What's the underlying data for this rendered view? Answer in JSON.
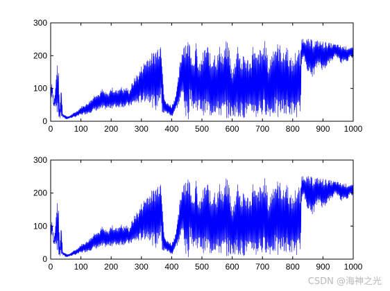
{
  "watermark": "CSDN @海神之光",
  "colors": {
    "signal": "#0000ff",
    "axes": "#000000",
    "background": "#ffffff"
  },
  "chart_data": [
    {
      "type": "line",
      "title": "",
      "xlabel": "",
      "ylabel": "",
      "xlim": [
        0,
        1000
      ],
      "ylim": [
        0,
        300
      ],
      "grid": false,
      "xticks": [
        "0",
        "100",
        "200",
        "300",
        "400",
        "500",
        "600",
        "700",
        "800",
        "900",
        "1000"
      ],
      "yticks": [
        "0",
        "100",
        "200",
        "300"
      ],
      "series": [
        {
          "color": "#0000ff",
          "x": [
            0,
            5,
            10,
            15,
            20,
            25,
            30,
            35,
            40,
            45,
            50,
            60,
            70,
            80,
            90,
            100,
            110,
            120,
            130,
            140,
            150,
            160,
            170,
            180,
            190,
            200,
            210,
            220,
            230,
            240,
            250,
            260,
            270,
            280,
            290,
            300,
            310,
            320,
            330,
            340,
            350,
            360,
            365,
            370,
            375,
            380,
            390,
            400,
            410,
            420,
            430,
            440,
            445,
            450,
            455,
            460,
            470,
            480,
            490,
            500,
            510,
            520,
            530,
            540,
            550,
            560,
            570,
            580,
            590,
            600,
            610,
            620,
            630,
            640,
            650,
            660,
            670,
            680,
            690,
            700,
            710,
            720,
            730,
            740,
            750,
            760,
            770,
            780,
            790,
            800,
            810,
            820,
            825,
            830,
            840,
            850,
            860,
            870,
            880,
            890,
            900,
            910,
            920,
            930,
            940,
            950,
            960,
            970,
            980,
            990,
            1000
          ],
          "upper": [
            110,
            120,
            60,
            90,
            170,
            175,
            40,
            115,
            25,
            20,
            18,
            15,
            22,
            28,
            35,
            45,
            50,
            55,
            65,
            75,
            90,
            85,
            100,
            90,
            85,
            105,
            100,
            95,
            110,
            100,
            105,
            95,
            120,
            140,
            150,
            170,
            185,
            200,
            205,
            215,
            230,
            240,
            250,
            180,
            80,
            60,
            55,
            50,
            70,
            120,
            200,
            250,
            255,
            255,
            250,
            245,
            190,
            240,
            170,
            200,
            230,
            235,
            190,
            220,
            200,
            240,
            205,
            245,
            235,
            150,
            200,
            250,
            185,
            210,
            195,
            190,
            245,
            200,
            220,
            230,
            250,
            175,
            215,
            245,
            240,
            235,
            210,
            245,
            200,
            190,
            220,
            225,
            205,
            255,
            255,
            252,
            250,
            250,
            248,
            246,
            245,
            243,
            240,
            238,
            236,
            234,
            232,
            230,
            228,
            226,
            225
          ],
          "lower": [
            60,
            80,
            40,
            50,
            30,
            10,
            5,
            10,
            10,
            10,
            5,
            8,
            10,
            12,
            15,
            18,
            20,
            22,
            25,
            28,
            30,
            32,
            33,
            35,
            37,
            38,
            40,
            40,
            42,
            42,
            45,
            44,
            48,
            50,
            52,
            55,
            58,
            60,
            55,
            35,
            30,
            60,
            55,
            15,
            20,
            25,
            20,
            10,
            30,
            40,
            60,
            70,
            0,
            0,
            0,
            70,
            35,
            25,
            40,
            20,
            15,
            20,
            10,
            25,
            15,
            10,
            15,
            10,
            5,
            12,
            15,
            5,
            18,
            5,
            20,
            8,
            20,
            5,
            25,
            10,
            20,
            15,
            10,
            20,
            5,
            15,
            25,
            10,
            15,
            20,
            10,
            15,
            5,
            190,
            180,
            150,
            130,
            140,
            160,
            170,
            150,
            165,
            175,
            180,
            200,
            190,
            175,
            185,
            180,
            195,
            190
          ]
        }
      ]
    },
    {
      "type": "line",
      "title": "",
      "xlabel": "",
      "ylabel": "",
      "xlim": [
        0,
        1000
      ],
      "ylim": [
        0,
        300
      ],
      "grid": false,
      "xticks": [
        "0",
        "100",
        "200",
        "300",
        "400",
        "500",
        "600",
        "700",
        "800",
        "900",
        "1000"
      ],
      "yticks": [
        "0",
        "100",
        "200",
        "300"
      ],
      "series": [
        {
          "color": "#0000ff",
          "x": [
            0,
            5,
            10,
            15,
            20,
            25,
            30,
            35,
            40,
            45,
            50,
            60,
            70,
            80,
            90,
            100,
            110,
            120,
            130,
            140,
            150,
            160,
            170,
            180,
            190,
            200,
            210,
            220,
            230,
            240,
            250,
            260,
            270,
            280,
            290,
            300,
            310,
            320,
            330,
            340,
            350,
            360,
            365,
            370,
            375,
            380,
            390,
            400,
            410,
            420,
            430,
            440,
            445,
            450,
            455,
            460,
            470,
            480,
            490,
            500,
            510,
            520,
            530,
            540,
            550,
            560,
            570,
            580,
            590,
            600,
            610,
            620,
            630,
            640,
            650,
            660,
            670,
            680,
            690,
            700,
            710,
            720,
            730,
            740,
            750,
            760,
            770,
            780,
            790,
            800,
            810,
            820,
            825,
            830,
            840,
            850,
            860,
            870,
            880,
            890,
            900,
            910,
            920,
            930,
            940,
            950,
            960,
            970,
            980,
            990,
            1000
          ],
          "upper": [
            110,
            120,
            60,
            90,
            170,
            175,
            40,
            115,
            25,
            20,
            18,
            15,
            22,
            28,
            35,
            45,
            50,
            55,
            65,
            75,
            90,
            85,
            100,
            90,
            85,
            105,
            100,
            95,
            110,
            100,
            105,
            95,
            120,
            140,
            150,
            170,
            185,
            200,
            205,
            215,
            230,
            240,
            250,
            180,
            80,
            60,
            55,
            50,
            70,
            120,
            200,
            250,
            255,
            255,
            250,
            245,
            190,
            240,
            170,
            200,
            230,
            235,
            190,
            220,
            200,
            240,
            205,
            245,
            235,
            150,
            200,
            250,
            185,
            210,
            195,
            190,
            245,
            200,
            220,
            230,
            250,
            175,
            215,
            245,
            240,
            235,
            210,
            245,
            200,
            190,
            220,
            225,
            205,
            255,
            255,
            252,
            250,
            250,
            248,
            246,
            245,
            243,
            240,
            238,
            236,
            234,
            232,
            230,
            228,
            226,
            225
          ],
          "lower": [
            60,
            80,
            40,
            50,
            30,
            10,
            5,
            10,
            10,
            10,
            5,
            8,
            10,
            12,
            15,
            18,
            20,
            22,
            25,
            28,
            30,
            32,
            33,
            35,
            37,
            38,
            40,
            40,
            42,
            42,
            45,
            44,
            48,
            50,
            52,
            55,
            58,
            60,
            55,
            35,
            30,
            60,
            55,
            15,
            20,
            25,
            20,
            10,
            30,
            40,
            60,
            70,
            0,
            0,
            0,
            70,
            35,
            25,
            40,
            20,
            15,
            20,
            10,
            25,
            15,
            10,
            15,
            10,
            5,
            12,
            15,
            5,
            18,
            5,
            20,
            8,
            20,
            5,
            25,
            10,
            20,
            15,
            10,
            20,
            5,
            15,
            25,
            10,
            15,
            20,
            10,
            15,
            5,
            190,
            180,
            150,
            130,
            140,
            160,
            170,
            150,
            165,
            175,
            180,
            200,
            190,
            175,
            185,
            180,
            195,
            190
          ]
        }
      ]
    }
  ]
}
